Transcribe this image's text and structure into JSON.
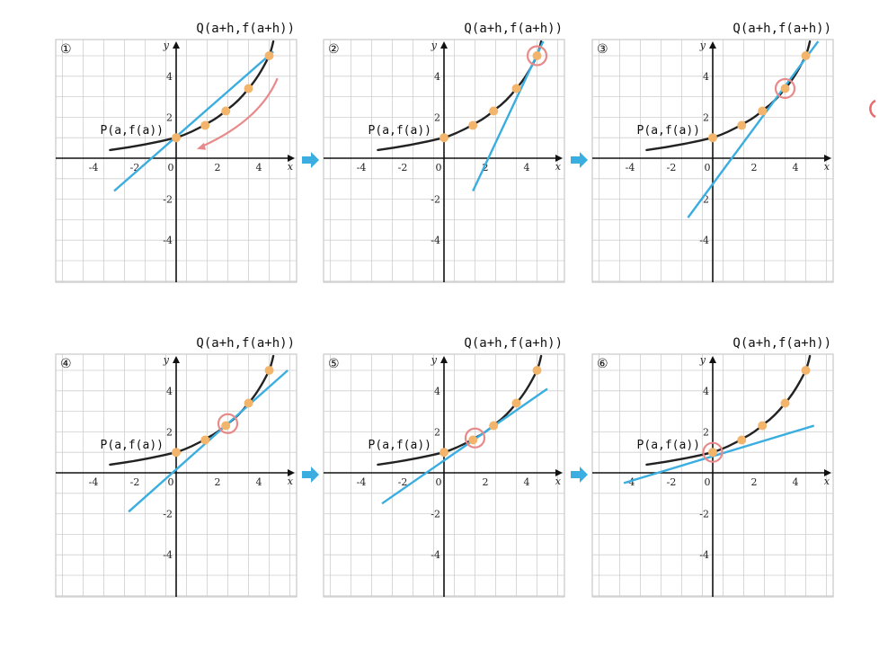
{
  "colors": {
    "curve": "#222222",
    "secant": "#3aaee0",
    "point": "#f3b56b",
    "highlight": "#e88a8a",
    "arrow": "#e88a8a",
    "nav_arrow": "#3aaee0",
    "grid": "#cfcfcf"
  },
  "icons": {
    "move_arrow": "curved-arrow-icon",
    "step_arrow": "right-arrow-icon",
    "highlight": "circle-marker-icon"
  },
  "labels": {
    "Q": "Q(a+h,f(a+h))",
    "P": "P(a,f(a))",
    "x_axis": "x",
    "y_axis": "y",
    "x_ticks": [
      "-4",
      "-2",
      "0",
      "2",
      "4"
    ],
    "y_ticks": [
      "4",
      "2",
      "-2",
      "-4"
    ]
  },
  "curve_points": [
    [
      -3.2,
      0.4
    ],
    [
      0,
      1.0
    ],
    [
      1.5,
      1.7
    ],
    [
      2.5,
      2.4
    ],
    [
      3.5,
      3.4
    ],
    [
      4.5,
      5.0
    ],
    [
      4.7,
      5.7
    ]
  ],
  "sample_points": [
    [
      0,
      1
    ],
    [
      1.4,
      1.6
    ],
    [
      2.4,
      2.3
    ],
    [
      3.5,
      3.4
    ],
    [
      4.5,
      5.0
    ]
  ],
  "panels": [
    {
      "number": "①",
      "show_P": true,
      "show_Q": true,
      "secant_from": [
        -3,
        -1.6
      ],
      "secant_to": [
        4.7,
        5.2
      ],
      "highlight": null,
      "move_arrow": true
    },
    {
      "number": "②",
      "show_P": true,
      "show_Q": true,
      "secant_from": [
        1.4,
        -1.6
      ],
      "secant_to": [
        4.8,
        5.7
      ],
      "highlight": [
        4.5,
        5.0
      ],
      "move_arrow": false
    },
    {
      "number": "③",
      "show_P": true,
      "show_Q": true,
      "secant_from": [
        -1.2,
        -2.9
      ],
      "secant_to": [
        5.1,
        5.7
      ],
      "highlight": [
        3.5,
        3.4
      ],
      "move_arrow": false
    },
    {
      "number": "④",
      "show_P": true,
      "show_Q": true,
      "secant_from": [
        -2.3,
        -1.9
      ],
      "secant_to": [
        5.4,
        5.0
      ],
      "highlight": [
        2.5,
        2.4
      ],
      "move_arrow": false
    },
    {
      "number": "⑤",
      "show_P": true,
      "show_Q": true,
      "secant_from": [
        -3,
        -1.5
      ],
      "secant_to": [
        5,
        4.1
      ],
      "highlight": [
        1.5,
        1.7
      ],
      "move_arrow": false
    },
    {
      "number": "⑥",
      "show_P": true,
      "show_Q": true,
      "secant_from": [
        -4.3,
        -0.5
      ],
      "secant_to": [
        4.9,
        2.3
      ],
      "highlight": [
        0,
        1.0
      ],
      "move_arrow": false
    }
  ]
}
